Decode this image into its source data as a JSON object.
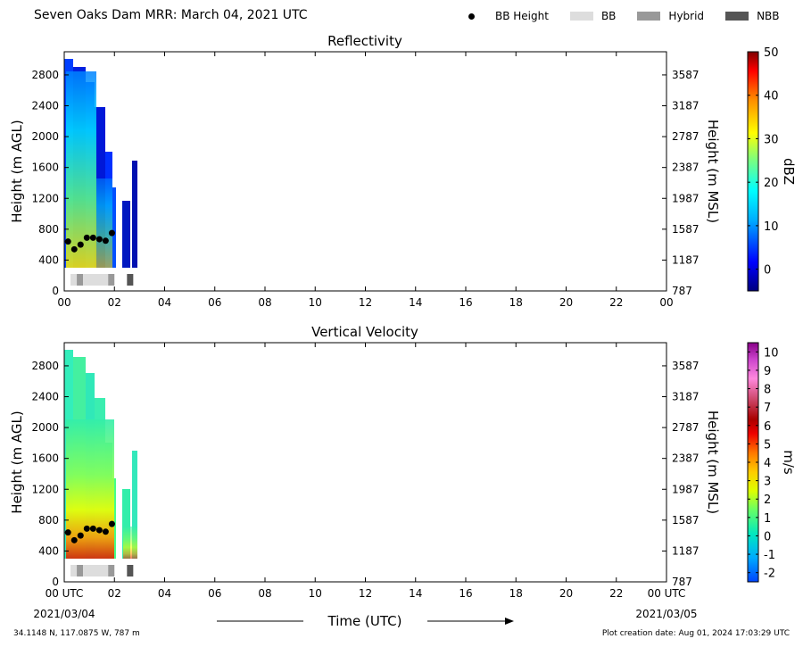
{
  "header": {
    "title": "Seven Oaks Dam MRR:  March 04, 2021 UTC",
    "legend": [
      {
        "label": "BB Height",
        "kind": "dot",
        "color": "#000000"
      },
      {
        "label": "BB",
        "kind": "swatch",
        "color": "#dddddd"
      },
      {
        "label": "Hybrid",
        "kind": "swatch",
        "color": "#999999"
      },
      {
        "label": "NBB",
        "kind": "swatch",
        "color": "#555555"
      }
    ]
  },
  "chart_data": [
    {
      "type": "heatmap",
      "title": "Reflectivity",
      "ylabel": "Height (m AGL)",
      "ylabel_right": "Height (m MSL)",
      "xlim": [
        0,
        24
      ],
      "ylim": [
        0,
        3100
      ],
      "x_ticks": [
        "00",
        "02",
        "04",
        "06",
        "08",
        "10",
        "12",
        "14",
        "16",
        "18",
        "20",
        "22",
        "00"
      ],
      "y_ticks": [
        0,
        400,
        800,
        1200,
        1600,
        2000,
        2400,
        2800
      ],
      "y_ticks_right": [
        "787",
        "1187",
        "1587",
        "1987",
        "2387",
        "2787",
        "3187",
        "3587"
      ],
      "colorbar": {
        "label": "dBZ",
        "min": -5,
        "max": 50,
        "ticks": [
          0,
          10,
          20,
          30,
          40,
          50
        ]
      },
      "bb_height": {
        "x": [
          0.15,
          0.4,
          0.65,
          0.9,
          1.15,
          1.4,
          1.65,
          1.9
        ],
        "y": [
          640,
          540,
          600,
          690,
          690,
          670,
          650,
          750
        ]
      },
      "bb_type_bar": [
        {
          "start": 0.25,
          "end": 0.5,
          "type": "BB"
        },
        {
          "start": 0.5,
          "end": 0.75,
          "type": "Hybrid"
        },
        {
          "start": 0.75,
          "end": 1.75,
          "type": "BB"
        },
        {
          "start": 1.75,
          "end": 2.0,
          "type": "Hybrid"
        },
        {
          "start": 2.5,
          "end": 2.75,
          "type": "NBB"
        }
      ]
    },
    {
      "type": "heatmap",
      "title": "Vertical Velocity",
      "ylabel": "Height (m AGL)",
      "ylabel_right": "Height (m MSL)",
      "xlabel": "Time (UTC)",
      "xlim": [
        0,
        24
      ],
      "ylim": [
        0,
        3100
      ],
      "x_ticks": [
        "00 UTC",
        "02",
        "04",
        "06",
        "08",
        "10",
        "12",
        "14",
        "16",
        "18",
        "20",
        "22",
        "00 UTC"
      ],
      "date_start": "2021/03/04",
      "date_end": "2021/03/05",
      "y_ticks": [
        0,
        400,
        800,
        1200,
        1600,
        2000,
        2400,
        2800
      ],
      "y_ticks_right": [
        "787",
        "1187",
        "1587",
        "1987",
        "2387",
        "2787",
        "3187",
        "3587"
      ],
      "colorbar": {
        "label": "m/s",
        "min": -2.5,
        "max": 10.5,
        "ticks": [
          -2,
          -1,
          0,
          1,
          2,
          3,
          4,
          5,
          6,
          7,
          8,
          9,
          10
        ]
      },
      "bb_height": {
        "x": [
          0.15,
          0.4,
          0.65,
          0.9,
          1.15,
          1.4,
          1.65,
          1.9
        ],
        "y": [
          640,
          540,
          600,
          690,
          690,
          670,
          650,
          750
        ]
      },
      "bb_type_bar": [
        {
          "start": 0.25,
          "end": 0.5,
          "type": "BB"
        },
        {
          "start": 0.5,
          "end": 0.75,
          "type": "Hybrid"
        },
        {
          "start": 0.75,
          "end": 1.75,
          "type": "BB"
        },
        {
          "start": 1.75,
          "end": 2.0,
          "type": "Hybrid"
        },
        {
          "start": 2.5,
          "end": 2.75,
          "type": "NBB"
        }
      ]
    }
  ],
  "footer": {
    "location": "34.1148 N, 117.0875 W, 787 m",
    "created": "Plot creation date: Aug 01, 2024 17:03:29 UTC"
  }
}
